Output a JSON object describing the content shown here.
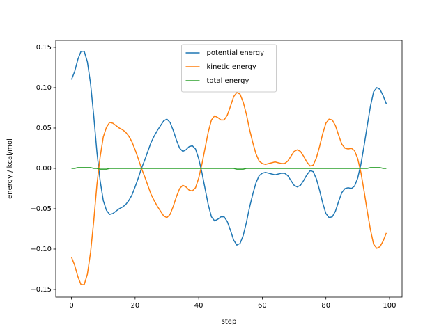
{
  "chart_data": {
    "type": "line",
    "xlabel": "step",
    "ylabel": "energy / kcal/mol",
    "x": [
      0,
      1,
      2,
      3,
      4,
      5,
      6,
      7,
      8,
      9,
      10,
      11,
      12,
      13,
      14,
      15,
      16,
      17,
      18,
      19,
      20,
      21,
      22,
      23,
      24,
      25,
      26,
      27,
      28,
      29,
      30,
      31,
      32,
      33,
      34,
      35,
      36,
      37,
      38,
      39,
      40,
      41,
      42,
      43,
      44,
      45,
      46,
      47,
      48,
      49,
      50,
      51,
      52,
      53,
      54,
      55,
      56,
      57,
      58,
      59,
      60,
      61,
      62,
      63,
      64,
      65,
      66,
      67,
      68,
      69,
      70,
      71,
      72,
      73,
      74,
      75,
      76,
      77,
      78,
      79,
      80,
      81,
      82,
      83,
      84,
      85,
      86,
      87,
      88,
      89,
      90,
      91,
      92,
      93,
      94,
      95,
      96,
      97,
      98,
      99
    ],
    "series": [
      {
        "name": "potential energy",
        "color": "#1f77b4",
        "values": [
          0.11,
          0.12,
          0.135,
          0.145,
          0.145,
          0.132,
          0.105,
          0.065,
          0.02,
          -0.015,
          -0.04,
          -0.052,
          -0.057,
          -0.056,
          -0.053,
          -0.05,
          -0.048,
          -0.045,
          -0.04,
          -0.033,
          -0.023,
          -0.012,
          0,
          0.01,
          0.021,
          0.032,
          0.04,
          0.047,
          0.053,
          0.059,
          0.061,
          0.057,
          0.047,
          0.035,
          0.025,
          0.021,
          0.023,
          0.027,
          0.028,
          0.024,
          0.012,
          -0.005,
          -0.025,
          -0.045,
          -0.06,
          -0.065,
          -0.063,
          -0.06,
          -0.06,
          -0.066,
          -0.077,
          -0.089,
          -0.095,
          -0.093,
          -0.083,
          -0.067,
          -0.048,
          -0.032,
          -0.018,
          -0.009,
          -0.006,
          -0.005,
          -0.006,
          -0.007,
          -0.008,
          -0.007,
          -0.006,
          -0.006,
          -0.009,
          -0.015,
          -0.021,
          -0.023,
          -0.021,
          -0.015,
          -0.008,
          -0.003,
          -0.004,
          -0.013,
          -0.027,
          -0.043,
          -0.056,
          -0.061,
          -0.06,
          -0.053,
          -0.041,
          -0.03,
          -0.025,
          -0.024,
          -0.025,
          -0.022,
          -0.012,
          0.005,
          0.028,
          0.053,
          0.077,
          0.095,
          0.1,
          0.098,
          0.09,
          0.08
        ]
      },
      {
        "name": "kinetic energy",
        "color": "#ff7f0e",
        "values": [
          -0.11,
          -0.12,
          -0.134,
          -0.144,
          -0.144,
          -0.131,
          -0.104,
          -0.065,
          -0.02,
          0.014,
          0.039,
          0.051,
          0.057,
          0.056,
          0.053,
          0.05,
          0.048,
          0.045,
          0.04,
          0.033,
          0.023,
          0.012,
          0,
          -0.01,
          -0.021,
          -0.032,
          -0.04,
          -0.047,
          -0.053,
          -0.059,
          -0.061,
          -0.057,
          -0.047,
          -0.035,
          -0.025,
          -0.021,
          -0.023,
          -0.027,
          -0.028,
          -0.024,
          -0.012,
          0.005,
          0.025,
          0.045,
          0.06,
          0.065,
          0.063,
          0.06,
          0.06,
          0.066,
          0.077,
          0.089,
          0.094,
          0.092,
          0.082,
          0.067,
          0.048,
          0.032,
          0.018,
          0.009,
          0.006,
          0.005,
          0.006,
          0.007,
          0.008,
          0.007,
          0.006,
          0.006,
          0.009,
          0.015,
          0.021,
          0.023,
          0.021,
          0.015,
          0.008,
          0.003,
          0.004,
          0.013,
          0.027,
          0.043,
          0.056,
          0.061,
          0.06,
          0.053,
          0.041,
          0.03,
          0.025,
          0.024,
          0.025,
          0.022,
          0.012,
          -0.005,
          -0.028,
          -0.053,
          -0.076,
          -0.094,
          -0.099,
          -0.097,
          -0.09,
          -0.08
        ]
      },
      {
        "name": "total energy",
        "color": "#2ca02c",
        "values": [
          0,
          0,
          0.001,
          0.001,
          0.001,
          0.001,
          0.001,
          0,
          0,
          -0.001,
          -0.001,
          -0.001,
          0,
          0,
          0,
          0,
          0,
          0,
          0,
          0,
          0,
          0,
          0,
          0,
          0,
          0,
          0,
          0,
          0,
          0,
          0,
          0,
          0,
          0,
          0,
          0,
          0,
          0,
          0,
          0,
          0,
          0,
          0,
          0,
          0,
          0,
          0,
          0,
          0,
          0,
          0,
          0,
          -0.001,
          -0.001,
          -0.001,
          0,
          0,
          0,
          0,
          0,
          0,
          0,
          0,
          0,
          0,
          0,
          0,
          0,
          0,
          0,
          0,
          0,
          0,
          0,
          0,
          0,
          0,
          0,
          0,
          0,
          0,
          0,
          0,
          0,
          0,
          0,
          0,
          0,
          0,
          0,
          0,
          0,
          0,
          0,
          0.001,
          0.001,
          0.001,
          0.001,
          0,
          0
        ]
      }
    ],
    "xlim": [
      -4.95,
      103.95
    ],
    "xticks": [
      0,
      20,
      40,
      60,
      80,
      100
    ],
    "ylim": [
      -0.1595,
      0.1586
    ],
    "yticks": [
      {
        "value": -0.15,
        "label": "−0.15"
      },
      {
        "value": -0.1,
        "label": "−0.10"
      },
      {
        "value": -0.05,
        "label": "−0.05"
      },
      {
        "value": 0,
        "label": "0.00"
      },
      {
        "value": 0.05,
        "label": "0.05"
      },
      {
        "value": 0.1,
        "label": "0.10"
      },
      {
        "value": 0.15,
        "label": "0.15"
      }
    ],
    "legend": "upper center",
    "grid": false
  }
}
